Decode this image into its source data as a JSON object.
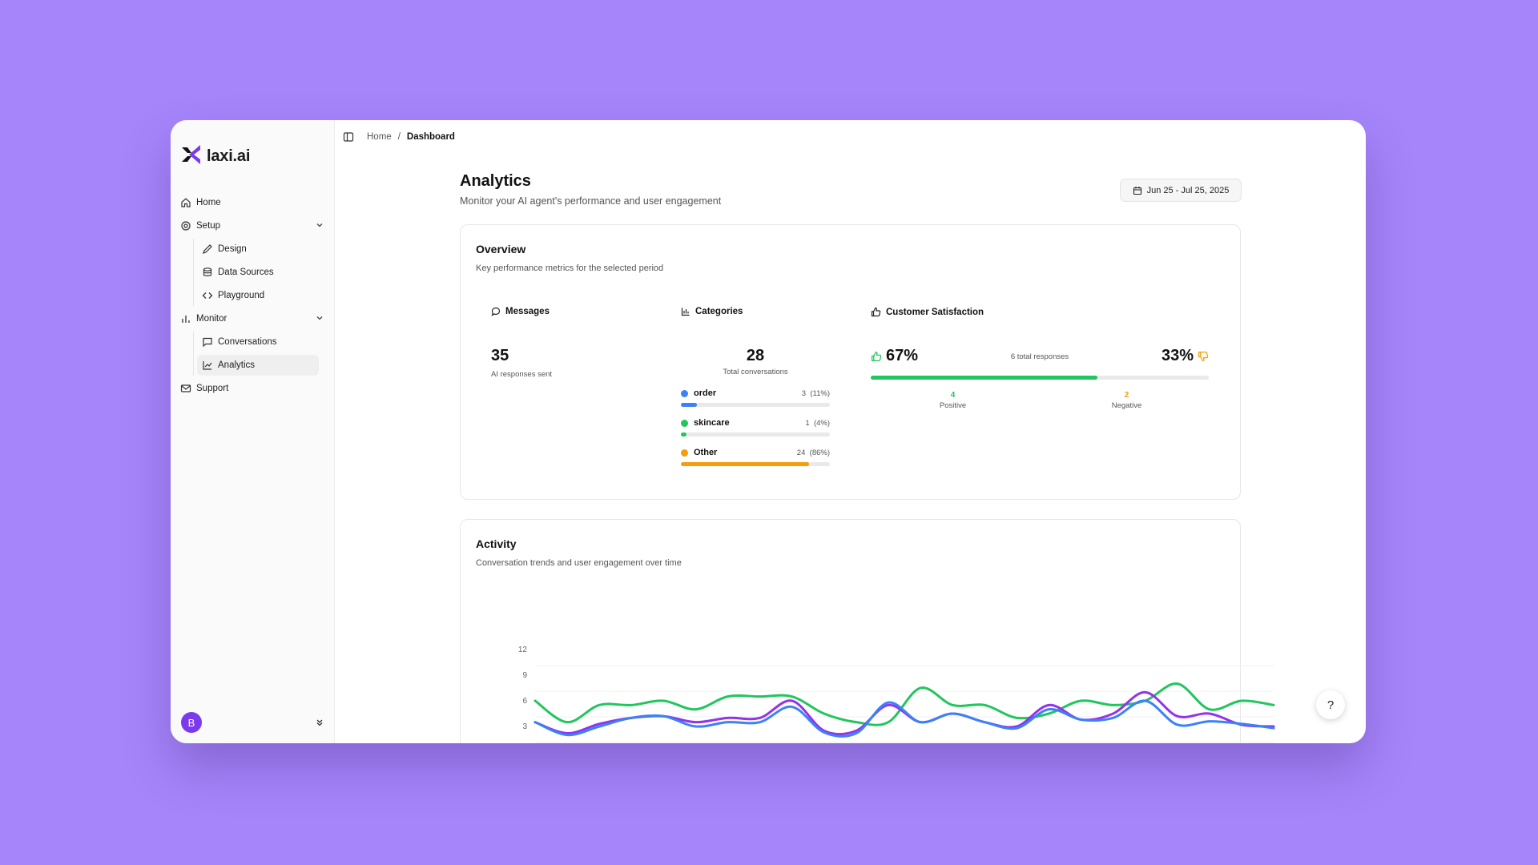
{
  "brand": {
    "name": "laxi.ai"
  },
  "sidebar": {
    "items": [
      {
        "label": "Home",
        "icon": "home-icon"
      },
      {
        "label": "Setup",
        "icon": "gear-icon",
        "children": [
          {
            "label": "Design",
            "icon": "pen-icon"
          },
          {
            "label": "Data Sources",
            "icon": "database-icon"
          },
          {
            "label": "Playground",
            "icon": "code-icon"
          }
        ]
      },
      {
        "label": "Monitor",
        "icon": "bar-chart-icon",
        "children": [
          {
            "label": "Conversations",
            "icon": "message-icon"
          },
          {
            "label": "Analytics",
            "icon": "line-chart-icon",
            "active": true
          }
        ]
      },
      {
        "label": "Support",
        "icon": "mail-icon"
      }
    ],
    "avatar": "B"
  },
  "breadcrumb": {
    "home": "Home",
    "sep": "/",
    "current": "Dashboard"
  },
  "page": {
    "title": "Analytics",
    "subtitle": "Monitor your AI agent's performance and user engagement",
    "date_range": "Jun 25 - Jul 25, 2025"
  },
  "overview": {
    "title": "Overview",
    "subtitle": "Key performance metrics for the selected period",
    "messages": {
      "label": "Messages",
      "value": "35",
      "caption": "AI responses sent"
    },
    "categories": {
      "label": "Categories",
      "value": "28",
      "caption": "Total conversations",
      "items": [
        {
          "name": "order",
          "count": "3",
          "pct": "(11%)",
          "fraction": 0.11,
          "color": "#3b82f6"
        },
        {
          "name": "skincare",
          "count": "1",
          "pct": "(4%)",
          "fraction": 0.04,
          "color": "#22c55e"
        },
        {
          "name": "Other",
          "count": "24",
          "pct": "(86%)",
          "fraction": 0.86,
          "color": "#f59e0b"
        }
      ]
    },
    "satisfaction": {
      "label": "Customer Satisfaction",
      "positive_pct": "67%",
      "negative_pct": "33%",
      "total": "6 total responses",
      "positive_fraction": 0.67,
      "positive_count": "4",
      "positive_label": "Positive",
      "negative_count": "2",
      "negative_label": "Negative",
      "colors": {
        "positive": "#22c55e",
        "negative": "#f59e0b"
      }
    }
  },
  "activity": {
    "title": "Activity",
    "subtitle": "Conversation trends and user engagement over time"
  },
  "help": {
    "label": "?"
  },
  "chart_data": {
    "type": "line",
    "ylim": [
      0,
      12
    ],
    "yticks": [
      "12",
      "9",
      "6",
      "3"
    ],
    "grid": true,
    "series": [
      {
        "color": "#22c55e",
        "values": [
          6,
          3.5,
          5.5,
          5.5,
          6,
          5,
          6.5,
          6.5,
          6.5,
          4.5,
          3.5,
          3.5,
          7.5,
          5.5,
          5.5,
          4,
          4.5,
          6,
          5.5,
          6,
          8,
          5,
          6,
          5.5
        ]
      },
      {
        "color": "#9333ea",
        "values": [
          3.5,
          2.2,
          3.3,
          4,
          4.2,
          3.5,
          4,
          4,
          6,
          2.5,
          2.5,
          5.5,
          3.5,
          4.5,
          3.5,
          3,
          5.5,
          3.8,
          4.5,
          7,
          4.2,
          4.5,
          3.2,
          3
        ]
      },
      {
        "color": "#3b82f6",
        "values": [
          3.5,
          2,
          3,
          4,
          4.2,
          3,
          3.5,
          3.5,
          5.3,
          2.3,
          2.2,
          5.8,
          3.5,
          4.5,
          3.5,
          2.8,
          5,
          3.8,
          4,
          6,
          3.2,
          3.6,
          3.3,
          2.8
        ]
      }
    ]
  }
}
